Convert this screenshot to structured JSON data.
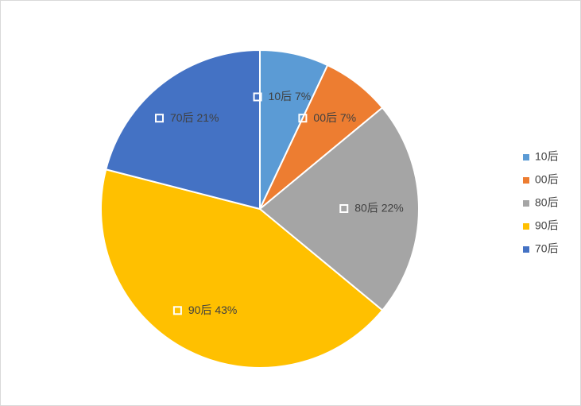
{
  "chart_data": {
    "type": "pie",
    "categories": [
      "10后",
      "00后",
      "80后",
      "90后",
      "70后"
    ],
    "values": [
      7,
      7,
      22,
      43,
      21
    ],
    "value_labels": [
      "10后 7%",
      "00后 7%",
      "80后 22%",
      "90后 43%",
      "70后 21%"
    ],
    "colors": [
      "#5b9bd5",
      "#ed7d31",
      "#a5a5a5",
      "#ffc000",
      "#4472c4"
    ],
    "legend": "right"
  }
}
